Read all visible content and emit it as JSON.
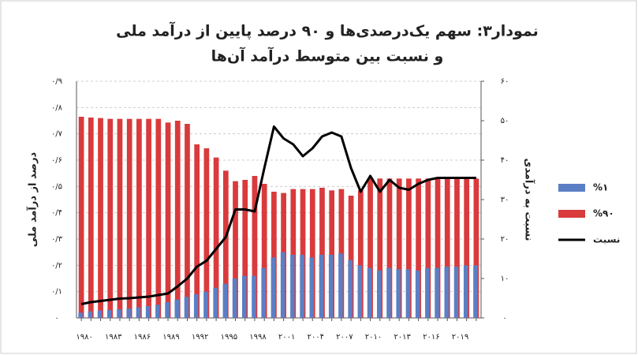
{
  "chart_data": {
    "type": "bar_line",
    "title": "نمودار۳: سهم یک‌درصدی‌ها و ۹۰ درصد پایین از درآمد ملی",
    "subtitle": "و نسبت بین متوسط درآمد آن‌ها",
    "ylabel": "درصد از درآمد ملی",
    "y2label": "نسبت به درآمدی",
    "categories": [
      "۱۹۸۰",
      null,
      null,
      "۱۹۸۳",
      null,
      null,
      "۱۹۸۶",
      null,
      null,
      "۱۹۸۹",
      null,
      null,
      "۱۹۹۲",
      null,
      null,
      "۱۹۹۵",
      null,
      null,
      "۱۹۹۸",
      null,
      null,
      "۲۰۰۱",
      null,
      null,
      "۲۰۰۴",
      null,
      null,
      "۲۰۰۷",
      null,
      null,
      "۲۰۱۰",
      null,
      null,
      "۲۰۱۳",
      null,
      null,
      "۲۰۱۶",
      null,
      null,
      "۲۰۱۹",
      null,
      null
    ],
    "series": [
      {
        "name": "%۹۰",
        "color": "#d93a3c",
        "kind": "bar",
        "values": [
          0.765,
          0.762,
          0.76,
          0.757,
          0.757,
          0.757,
          0.757,
          0.757,
          0.757,
          0.743,
          0.75,
          0.738,
          0.66,
          0.645,
          0.61,
          0.56,
          0.52,
          0.525,
          0.54,
          0.51,
          0.48,
          0.475,
          0.49,
          0.49,
          0.49,
          0.495,
          0.485,
          0.49,
          0.465,
          0.485,
          0.53,
          0.53,
          0.53,
          0.53,
          0.53,
          0.53,
          0.53,
          0.53,
          0.53,
          0.53,
          0.53,
          0.53
        ]
      },
      {
        "name": "%۱",
        "color": "#5b7fc4",
        "kind": "bar",
        "values": [
          0.02,
          0.025,
          0.028,
          0.03,
          0.033,
          0.036,
          0.04,
          0.045,
          0.05,
          0.06,
          0.07,
          0.08,
          0.09,
          0.1,
          0.115,
          0.13,
          0.15,
          0.16,
          0.16,
          0.19,
          0.23,
          0.25,
          0.24,
          0.24,
          0.23,
          0.24,
          0.24,
          0.245,
          0.22,
          0.2,
          0.19,
          0.18,
          0.19,
          0.185,
          0.185,
          0.18,
          0.19,
          0.19,
          0.195,
          0.195,
          0.2,
          0.2
        ]
      },
      {
        "name": "نسبت",
        "color": "#000000",
        "kind": "line",
        "axis": "y2",
        "values": [
          3.5,
          4,
          4.3,
          4.6,
          4.9,
          5,
          5.2,
          5.4,
          5.8,
          6.2,
          8,
          10,
          13,
          14.5,
          17.5,
          20.5,
          27.5,
          27.5,
          27,
          38,
          48.5,
          45.5,
          44,
          41,
          43,
          46,
          47,
          46,
          38,
          32,
          36,
          32,
          35,
          33,
          32.5,
          34,
          35,
          35.5,
          35.5,
          35.5,
          35.5,
          35.5
        ]
      }
    ],
    "ylim": [
      0,
      0.9
    ],
    "yticks": [
      {
        "value": 0,
        "label": "۰"
      },
      {
        "value": 0.1,
        "label": "۰/۱"
      },
      {
        "value": 0.2,
        "label": "۰/۲"
      },
      {
        "value": 0.3,
        "label": "۰/۳"
      },
      {
        "value": 0.4,
        "label": "۰/۴"
      },
      {
        "value": 0.5,
        "label": "۰/۵"
      },
      {
        "value": 0.6,
        "label": "۰/۶"
      },
      {
        "value": 0.7,
        "label": "۰/۷"
      },
      {
        "value": 0.8,
        "label": "۰/۸"
      },
      {
        "value": 0.9,
        "label": "۰/۹"
      }
    ],
    "y2lim": [
      0,
      60
    ],
    "y2ticks": [
      {
        "value": 0,
        "label": "۰"
      },
      {
        "value": 10,
        "label": "۱۰"
      },
      {
        "value": 20,
        "label": "۲۰"
      },
      {
        "value": 30,
        "label": "۳۰"
      },
      {
        "value": 40,
        "label": "۴۰"
      },
      {
        "value": 50,
        "label": "۵۰"
      },
      {
        "value": 60,
        "label": "۶۰"
      }
    ],
    "grid": true,
    "legend": "right"
  }
}
